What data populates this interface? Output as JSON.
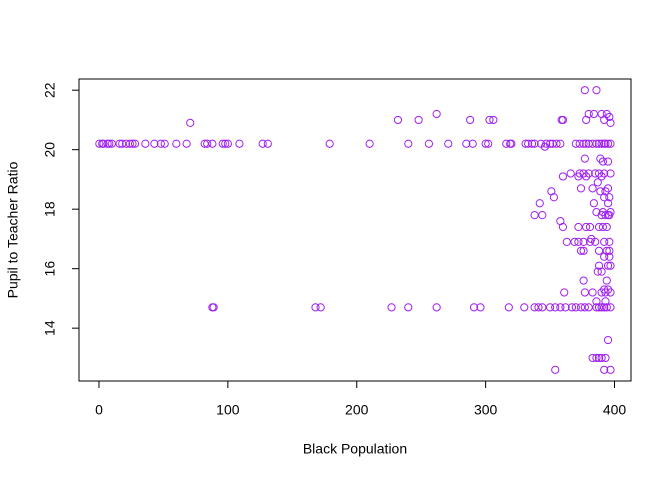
{
  "chart_data": {
    "type": "scatter",
    "x_label": "Black Population",
    "y_label": "Pupil to Teacher Ratio",
    "color": "#a020f0",
    "xlim": [
      -15.5,
      412.8
    ],
    "ylim": [
      12.224,
      22.376
    ],
    "xticks": [
      0,
      100,
      200,
      300,
      400
    ],
    "yticks": [
      14,
      16,
      18,
      20,
      22
    ],
    "x": [
      0.3,
      2.5,
      3.5,
      6.7,
      8,
      10,
      16,
      18,
      21,
      24,
      26,
      28,
      36,
      43,
      48,
      51,
      60,
      68,
      82,
      84,
      88,
      96,
      98,
      100,
      109,
      127,
      131,
      179,
      210,
      240,
      256,
      271,
      285,
      290,
      300,
      302,
      316,
      319,
      320,
      331,
      333,
      336,
      338,
      343,
      347,
      350,
      352,
      355,
      358,
      370,
      373,
      376,
      378,
      380,
      383,
      386,
      388,
      390,
      392,
      393,
      395,
      396.9,
      88,
      89,
      168,
      172,
      227,
      240,
      262,
      291,
      296,
      318,
      330,
      338,
      341,
      344,
      350,
      354,
      358,
      362,
      367,
      370,
      374,
      377,
      380,
      386,
      388,
      390,
      392,
      394,
      396.9,
      70.8,
      232,
      248,
      262,
      288,
      303,
      306,
      359,
      360,
      377,
      386,
      384,
      390,
      392,
      394,
      396,
      396.9,
      378,
      380,
      366,
      373,
      376,
      380,
      385,
      388,
      392,
      396.9,
      360,
      372,
      378,
      390,
      374,
      383,
      395,
      351,
      389,
      393,
      353,
      392,
      396,
      342,
      384,
      395,
      386,
      391,
      396.9,
      338,
      344,
      390,
      393,
      395,
      396,
      358,
      360,
      372,
      378,
      381,
      388,
      391,
      394,
      363,
      369,
      372,
      376,
      381,
      385,
      392,
      396,
      374,
      376,
      388,
      394,
      396,
      392,
      396,
      388,
      395,
      396.9,
      387,
      390,
      376,
      394,
      392,
      395,
      361,
      377,
      383,
      390,
      393,
      396.9,
      386,
      393,
      395,
      383,
      386,
      388,
      390,
      393,
      354,
      392,
      396.9,
      391,
      395,
      377,
      389,
      346,
      387,
      382
    ],
    "values": [
      20.2,
      20.2,
      20.2,
      20.2,
      20.2,
      20.2,
      20.2,
      20.2,
      20.2,
      20.2,
      20.2,
      20.2,
      20.2,
      20.2,
      20.2,
      20.2,
      20.2,
      20.2,
      20.2,
      20.2,
      20.2,
      20.2,
      20.2,
      20.2,
      20.2,
      20.2,
      20.2,
      20.2,
      20.2,
      20.2,
      20.2,
      20.2,
      20.2,
      20.2,
      20.2,
      20.2,
      20.2,
      20.2,
      20.2,
      20.2,
      20.2,
      20.2,
      20.2,
      20.2,
      20.2,
      20.2,
      20.2,
      20.2,
      20.2,
      20.2,
      20.2,
      20.2,
      20.2,
      20.2,
      20.2,
      20.2,
      20.2,
      20.2,
      20.2,
      20.2,
      20.2,
      20.2,
      14.7,
      14.7,
      14.7,
      14.7,
      14.7,
      14.7,
      14.7,
      14.7,
      14.7,
      14.7,
      14.7,
      14.7,
      14.7,
      14.7,
      14.7,
      14.7,
      14.7,
      14.7,
      14.7,
      14.7,
      14.7,
      14.7,
      14.7,
      14.7,
      14.7,
      14.7,
      14.7,
      14.7,
      14.7,
      20.9,
      21,
      21,
      21.2,
      21,
      21,
      21,
      21,
      21,
      22,
      22,
      21.2,
      21.2,
      21,
      21.2,
      21.1,
      20.9,
      21,
      21.2,
      19.2,
      19.2,
      19.2,
      19.2,
      19.2,
      19.2,
      19.2,
      19.2,
      19.1,
      19.1,
      19.1,
      19.1,
      18.7,
      18.7,
      18.7,
      18.6,
      18.6,
      18.6,
      18.4,
      18.4,
      18.4,
      18.2,
      18.2,
      18.2,
      17.9,
      17.9,
      17.9,
      17.8,
      17.8,
      17.8,
      17.8,
      17.8,
      17.8,
      17.6,
      17.4,
      17.4,
      17.4,
      17.4,
      17.4,
      17.4,
      17.4,
      16.9,
      16.9,
      16.9,
      16.9,
      16.9,
      16.9,
      16.9,
      16.9,
      16.6,
      16.6,
      16.6,
      16.6,
      16.6,
      16.4,
      16.4,
      16.1,
      16.1,
      16.1,
      15.9,
      15.9,
      15.6,
      15.6,
      15.3,
      15.3,
      15.2,
      15.2,
      15.2,
      15.2,
      15.2,
      15.2,
      14.9,
      14.9,
      13.6,
      13,
      13,
      13,
      13,
      13,
      12.6,
      12.6,
      12.6,
      19.6,
      19.6,
      19.7,
      19.7,
      20.1,
      18.9,
      17
    ]
  }
}
